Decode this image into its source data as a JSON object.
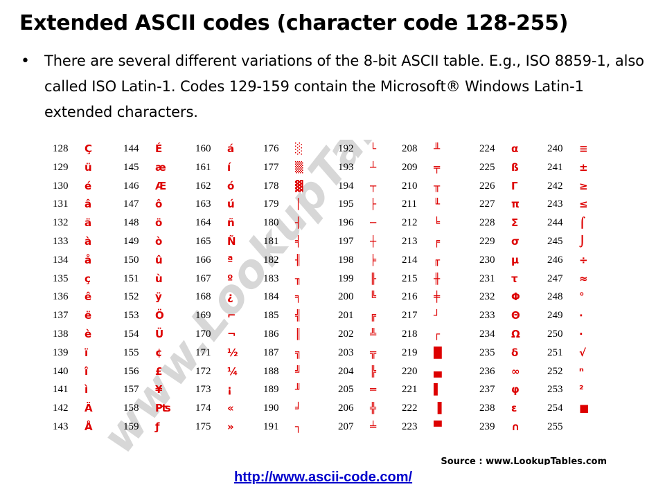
{
  "slide": {
    "title": "Extended ASCII codes (character code 128-255)",
    "bullet": "There are several different variations of the 8-bit ASCII table. E.g., ISO 8859-1, also called ISO Latin-1. Codes 129-159 contain the Microsoft® Windows Latin-1 extended characters.",
    "link_text": "http://www.ascii-code.com/"
  },
  "table": {
    "watermark": "www.LookupTables.com",
    "source_label": "Source :",
    "source_site": "www.LookupTables.com",
    "columns": [
      [
        {
          "code": "128",
          "char": "Ç"
        },
        {
          "code": "129",
          "char": "ü"
        },
        {
          "code": "130",
          "char": "é"
        },
        {
          "code": "131",
          "char": "â"
        },
        {
          "code": "132",
          "char": "ä"
        },
        {
          "code": "133",
          "char": "à"
        },
        {
          "code": "134",
          "char": "å"
        },
        {
          "code": "135",
          "char": "ç"
        },
        {
          "code": "136",
          "char": "ê"
        },
        {
          "code": "137",
          "char": "ë"
        },
        {
          "code": "138",
          "char": "è"
        },
        {
          "code": "139",
          "char": "ï"
        },
        {
          "code": "140",
          "char": "î"
        },
        {
          "code": "141",
          "char": "ì"
        },
        {
          "code": "142",
          "char": "Ä"
        },
        {
          "code": "143",
          "char": "Å"
        }
      ],
      [
        {
          "code": "144",
          "char": "É"
        },
        {
          "code": "145",
          "char": "æ"
        },
        {
          "code": "146",
          "char": "Æ"
        },
        {
          "code": "147",
          "char": "ô"
        },
        {
          "code": "148",
          "char": "ö"
        },
        {
          "code": "149",
          "char": "ò"
        },
        {
          "code": "150",
          "char": "û"
        },
        {
          "code": "151",
          "char": "ù"
        },
        {
          "code": "152",
          "char": "ÿ"
        },
        {
          "code": "153",
          "char": "Ö"
        },
        {
          "code": "154",
          "char": "Ü"
        },
        {
          "code": "155",
          "char": "¢"
        },
        {
          "code": "156",
          "char": "£"
        },
        {
          "code": "157",
          "char": "¥"
        },
        {
          "code": "158",
          "char": "₧"
        },
        {
          "code": "159",
          "char": "ƒ"
        }
      ],
      [
        {
          "code": "160",
          "char": "á"
        },
        {
          "code": "161",
          "char": "í"
        },
        {
          "code": "162",
          "char": "ó"
        },
        {
          "code": "163",
          "char": "ú"
        },
        {
          "code": "164",
          "char": "ñ"
        },
        {
          "code": "165",
          "char": "Ñ"
        },
        {
          "code": "166",
          "char": "ª"
        },
        {
          "code": "167",
          "char": "º"
        },
        {
          "code": "168",
          "char": "¿"
        },
        {
          "code": "169",
          "char": "⌐"
        },
        {
          "code": "170",
          "char": "¬"
        },
        {
          "code": "171",
          "char": "½"
        },
        {
          "code": "172",
          "char": "¼"
        },
        {
          "code": "173",
          "char": "¡"
        },
        {
          "code": "174",
          "char": "«"
        },
        {
          "code": "175",
          "char": "»"
        }
      ],
      [
        {
          "code": "176",
          "char": "░"
        },
        {
          "code": "177",
          "char": "▒"
        },
        {
          "code": "178",
          "char": "▓"
        },
        {
          "code": "179",
          "char": "│"
        },
        {
          "code": "180",
          "char": "┤"
        },
        {
          "code": "181",
          "char": "╡"
        },
        {
          "code": "182",
          "char": "╢"
        },
        {
          "code": "183",
          "char": "╖"
        },
        {
          "code": "184",
          "char": "╕"
        },
        {
          "code": "185",
          "char": "╣"
        },
        {
          "code": "186",
          "char": "║"
        },
        {
          "code": "187",
          "char": "╗"
        },
        {
          "code": "188",
          "char": "╝"
        },
        {
          "code": "189",
          "char": "╜"
        },
        {
          "code": "190",
          "char": "╛"
        },
        {
          "code": "191",
          "char": "┐"
        }
      ],
      [
        {
          "code": "192",
          "char": "└"
        },
        {
          "code": "193",
          "char": "┴"
        },
        {
          "code": "194",
          "char": "┬"
        },
        {
          "code": "195",
          "char": "├"
        },
        {
          "code": "196",
          "char": "─"
        },
        {
          "code": "197",
          "char": "┼"
        },
        {
          "code": "198",
          "char": "╞"
        },
        {
          "code": "199",
          "char": "╟"
        },
        {
          "code": "200",
          "char": "╚"
        },
        {
          "code": "201",
          "char": "╔"
        },
        {
          "code": "202",
          "char": "╩"
        },
        {
          "code": "203",
          "char": "╦"
        },
        {
          "code": "204",
          "char": "╠"
        },
        {
          "code": "205",
          "char": "═"
        },
        {
          "code": "206",
          "char": "╬"
        },
        {
          "code": "207",
          "char": "╧"
        }
      ],
      [
        {
          "code": "208",
          "char": "╨"
        },
        {
          "code": "209",
          "char": "╤"
        },
        {
          "code": "210",
          "char": "╥"
        },
        {
          "code": "211",
          "char": "╙"
        },
        {
          "code": "212",
          "char": "╘"
        },
        {
          "code": "213",
          "char": "╒"
        },
        {
          "code": "214",
          "char": "╓"
        },
        {
          "code": "215",
          "char": "╫"
        },
        {
          "code": "216",
          "char": "╪"
        },
        {
          "code": "217",
          "char": "┘"
        },
        {
          "code": "218",
          "char": "┌"
        },
        {
          "code": "219",
          "char": "█"
        },
        {
          "code": "220",
          "char": "▄"
        },
        {
          "code": "221",
          "char": "▌"
        },
        {
          "code": "222",
          "char": "▐"
        },
        {
          "code": "223",
          "char": "▀"
        }
      ],
      [
        {
          "code": "224",
          "char": "α"
        },
        {
          "code": "225",
          "char": "ß"
        },
        {
          "code": "226",
          "char": "Γ"
        },
        {
          "code": "227",
          "char": "π"
        },
        {
          "code": "228",
          "char": "Σ"
        },
        {
          "code": "229",
          "char": "σ"
        },
        {
          "code": "230",
          "char": "µ"
        },
        {
          "code": "231",
          "char": "τ"
        },
        {
          "code": "232",
          "char": "Φ"
        },
        {
          "code": "233",
          "char": "Θ"
        },
        {
          "code": "234",
          "char": "Ω"
        },
        {
          "code": "235",
          "char": "δ"
        },
        {
          "code": "236",
          "char": "∞"
        },
        {
          "code": "237",
          "char": "φ"
        },
        {
          "code": "238",
          "char": "ε"
        },
        {
          "code": "239",
          "char": "∩"
        }
      ],
      [
        {
          "code": "240",
          "char": "≡"
        },
        {
          "code": "241",
          "char": "±"
        },
        {
          "code": "242",
          "char": "≥"
        },
        {
          "code": "243",
          "char": "≤"
        },
        {
          "code": "244",
          "char": "⌠"
        },
        {
          "code": "245",
          "char": "⌡"
        },
        {
          "code": "246",
          "char": "÷"
        },
        {
          "code": "247",
          "char": "≈"
        },
        {
          "code": "248",
          "char": "°"
        },
        {
          "code": "249",
          "char": "∙"
        },
        {
          "code": "250",
          "char": "·"
        },
        {
          "code": "251",
          "char": "√"
        },
        {
          "code": "252",
          "char": "ⁿ"
        },
        {
          "code": "253",
          "char": "²"
        },
        {
          "code": "254",
          "char": "■"
        },
        {
          "code": "255",
          "char": " "
        }
      ]
    ]
  }
}
